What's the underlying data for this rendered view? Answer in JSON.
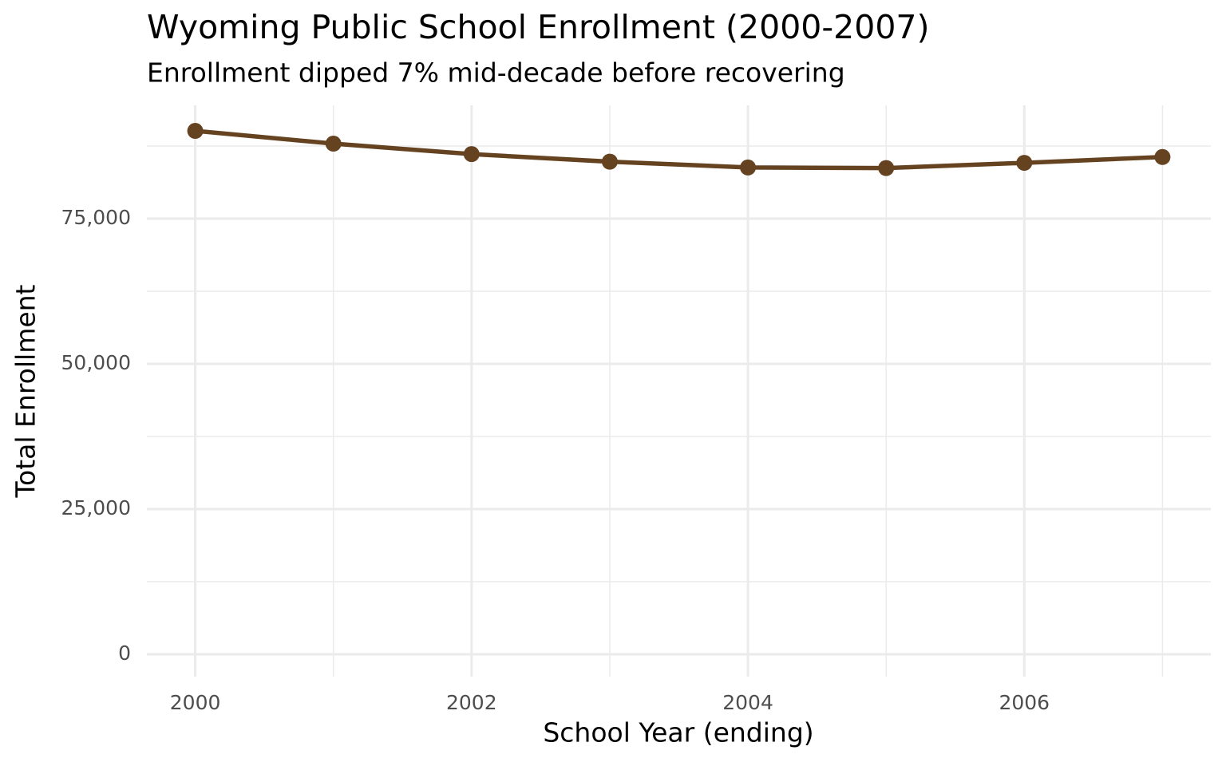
{
  "chart_data": {
    "type": "line",
    "title": "Wyoming Public School Enrollment (2000-2007)",
    "subtitle": "Enrollment dipped 7% mid-decade before recovering",
    "x_label": "School Year (ending)",
    "y_label": "Total Enrollment",
    "x": [
      2000,
      2001,
      2002,
      2003,
      2004,
      2005,
      2006,
      2007
    ],
    "series": [
      {
        "name": "Total Enrollment",
        "color": "#654321",
        "values": [
          90100,
          87900,
          86100,
          84800,
          83800,
          83700,
          84600,
          85600
        ]
      }
    ],
    "xlim": [
      1999.65,
      2007.35
    ],
    "ylim": [
      -3850,
      94500
    ],
    "xticks": [
      2000,
      2002,
      2004,
      2006
    ],
    "yticks": [
      0,
      {
        "value": 25000,
        "label": "25,000"
      },
      {
        "value": 50000,
        "label": "50,000"
      },
      {
        "value": 75000,
        "label": "75,000"
      }
    ],
    "xminorticks": [
      2001,
      2003,
      2005,
      2007
    ],
    "yminorticks": [
      12500,
      37500,
      62500,
      87500
    ],
    "grid": true
  }
}
